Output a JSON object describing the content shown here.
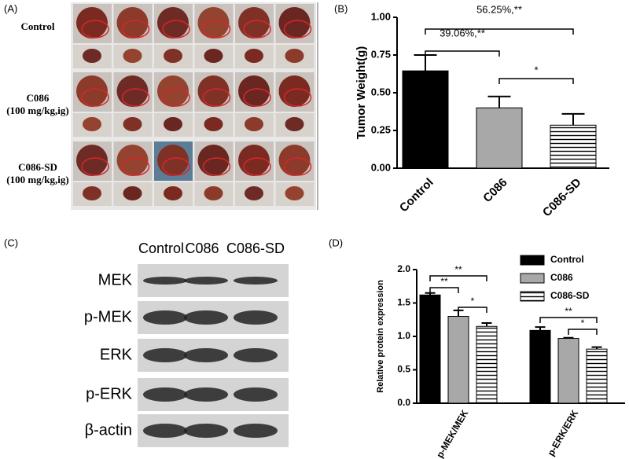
{
  "panel_a": {
    "label": "(A)",
    "rows": [
      {
        "group": "Control"
      },
      {
        "group": "C086",
        "dose": "(100 mg/kg,ig)"
      },
      {
        "group": "C086-SD",
        "dose": "(100 mg/kg,ig)"
      }
    ]
  },
  "panel_c": {
    "label": "(C)",
    "columns": [
      "Control",
      "C086",
      "C086-SD"
    ],
    "rows": [
      "MEK",
      "p-MEK",
      "ERK",
      "p-ERK",
      "β-actin"
    ]
  },
  "chart_data": [
    {
      "type": "bar",
      "label": "(B)",
      "y_label": "Tumor Weight(g)",
      "categories": [
        "Control",
        "C086",
        "C086-SD"
      ],
      "values": [
        0.645,
        0.4,
        0.285
      ],
      "errors": [
        0.105,
        0.075,
        0.075
      ],
      "colors": [
        "#000000",
        "#a8a8a8",
        "#ffffff"
      ],
      "hatched": [
        false,
        false,
        true
      ],
      "ylim": [
        0,
        1.0
      ],
      "yticks": [
        {
          "value": 0,
          "label": "0.00"
        },
        {
          "value": 0.25,
          "label": "0.25"
        },
        {
          "value": 0.5,
          "label": "0.50"
        },
        {
          "value": 0.75,
          "label": "0.75"
        },
        {
          "value": 1.0,
          "label": "1.00"
        }
      ],
      "annotations": [
        "56.25%,**",
        "39.06%,**",
        "*"
      ]
    },
    {
      "type": "grouped-bar",
      "label": "(D)",
      "y_label": "Relative protein expression",
      "categories": [
        "p-MEK/MEK",
        "p-ERK/ERK"
      ],
      "series": [
        {
          "name": "Control",
          "color": "#000000",
          "hatched": false,
          "values": [
            1.62,
            1.09
          ],
          "errors": [
            0.03,
            0.05
          ]
        },
        {
          "name": "C086",
          "color": "#a8a8a8",
          "hatched": false,
          "values": [
            1.3,
            0.97
          ],
          "errors": [
            0.09,
            0.01
          ]
        },
        {
          "name": "C086-SD",
          "color": "#ffffff",
          "hatched": true,
          "values": [
            1.15,
            0.81
          ],
          "errors": [
            0.05,
            0.03
          ]
        }
      ],
      "ylim": [
        0,
        2.0
      ],
      "yticks": [
        {
          "value": 0,
          "label": "0.0"
        },
        {
          "value": 0.5,
          "label": "0.5"
        },
        {
          "value": 1.0,
          "label": "1.0"
        },
        {
          "value": 1.5,
          "label": "1.5"
        },
        {
          "value": 2.0,
          "label": "2.0"
        }
      ],
      "legend": "upper right",
      "annotations": [
        "**",
        "**",
        "*",
        "**",
        "*"
      ]
    }
  ]
}
